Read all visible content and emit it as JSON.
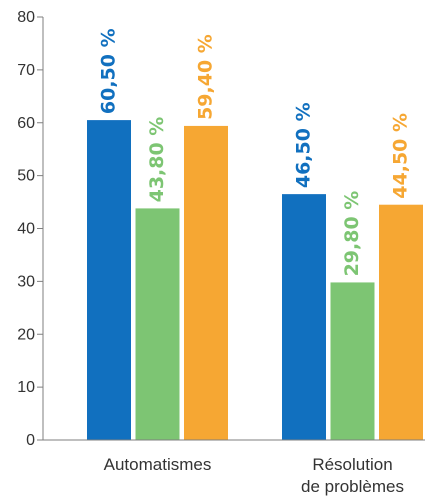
{
  "chart_data": {
    "type": "bar",
    "categories": [
      [
        "Automatismes"
      ],
      [
        "Résolution",
        "de problèmes"
      ]
    ],
    "series": [
      {
        "values": [
          60.5,
          46.5
        ],
        "labels": [
          "60,50 %",
          "46,50 %"
        ],
        "color": "#1170bf"
      },
      {
        "values": [
          43.8,
          29.8
        ],
        "labels": [
          "43,80 %",
          "29,80 %"
        ],
        "color": "#7dc573"
      },
      {
        "values": [
          59.4,
          44.5
        ],
        "labels": [
          "59,40 %",
          "44,50 %"
        ],
        "color": "#f6a733"
      }
    ],
    "yticks": [
      0,
      10,
      20,
      30,
      40,
      50,
      60,
      70,
      80
    ],
    "ylim": [
      0,
      80
    ],
    "xlabel": "",
    "ylabel": "",
    "grid": false,
    "legend": "none"
  }
}
